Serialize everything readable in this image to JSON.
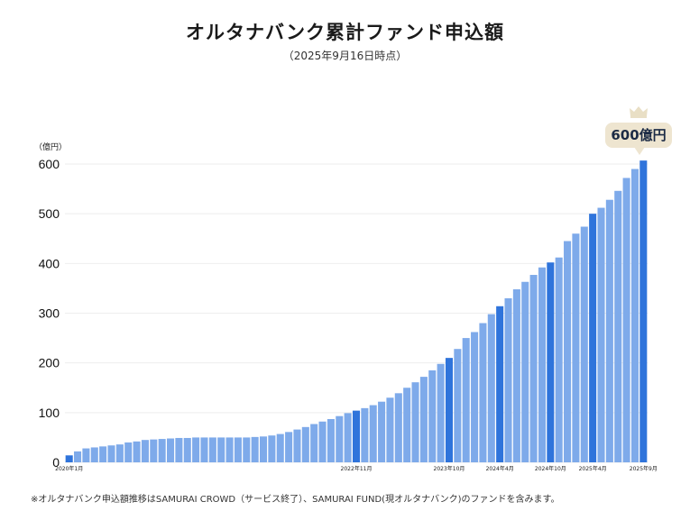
{
  "title": "オルタナバンク累計ファンド申込額",
  "subtitle": "（2025年9月16日時点）",
  "unit_label": "（億円）",
  "badge_label": "600億円",
  "footnote": "※オルタナバンク申込額推移はSAMURAI CROWD（サービス終了）、SAMURAI FUND(現オルタナバンク)のファンドを含みます。",
  "colors": {
    "bar": "#7eaaea",
    "highlight": "#2f74db",
    "grid": "#eeeeee",
    "badge": "#eee5d0"
  },
  "chart_data": {
    "type": "bar",
    "ylabel": "（億円）",
    "ylim": [
      0,
      600
    ],
    "yticks": [
      0,
      100,
      200,
      300,
      400,
      500,
      600
    ],
    "values": [
      14,
      22,
      28,
      30,
      32,
      34,
      36,
      40,
      42,
      45,
      46,
      47,
      48,
      49,
      49,
      50,
      50,
      50,
      50,
      50,
      50,
      50,
      51,
      52,
      54,
      57,
      61,
      66,
      71,
      77,
      82,
      87,
      93,
      99,
      104,
      109,
      115,
      122,
      130,
      139,
      150,
      161,
      172,
      185,
      198,
      210,
      228,
      250,
      262,
      280,
      298,
      314,
      330,
      348,
      363,
      377,
      392,
      402,
      412,
      445,
      460,
      474,
      500,
      512,
      528,
      546,
      572,
      590,
      607
    ],
    "highlight_indices": [
      0,
      34,
      45,
      51,
      57,
      62,
      68
    ],
    "x_tick_labels": [
      {
        "index": 0,
        "label": "2020年1月"
      },
      {
        "index": 34,
        "label": "2022年11月"
      },
      {
        "index": 45,
        "label": "2023年10月"
      },
      {
        "index": 51,
        "label": "2024年4月"
      },
      {
        "index": 57,
        "label": "2024年10月"
      },
      {
        "index": 62,
        "label": "2025年4月"
      },
      {
        "index": 68,
        "label": "2025年9月"
      }
    ],
    "grid": true
  }
}
